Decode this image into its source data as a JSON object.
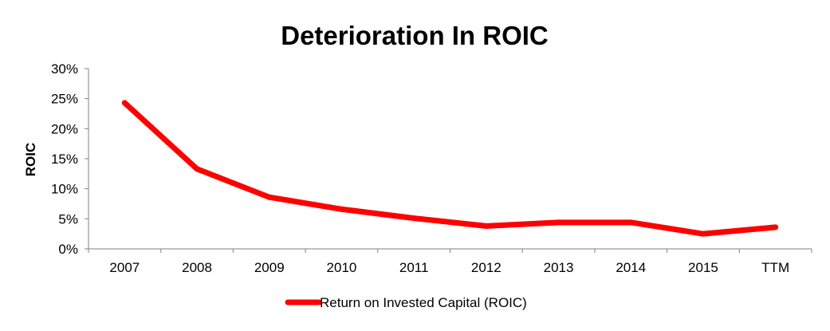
{
  "chart_data": {
    "type": "line",
    "title": "Deterioration In ROIC",
    "xlabel": "",
    "ylabel": "ROIC",
    "categories": [
      "2007",
      "2008",
      "2009",
      "2010",
      "2011",
      "2012",
      "2013",
      "2014",
      "2015",
      "TTM"
    ],
    "series": [
      {
        "name": "Return on Invested Capital (ROIC)",
        "values": [
          24.3,
          13.3,
          8.6,
          6.6,
          5.1,
          3.8,
          4.4,
          4.4,
          2.5,
          3.6
        ],
        "color": "#ff0000"
      }
    ],
    "ylim": [
      0,
      30
    ],
    "yticks": [
      0,
      5,
      10,
      15,
      20,
      25,
      30
    ],
    "ytick_labels": [
      "0%",
      "5%",
      "10%",
      "15%",
      "20%",
      "25%",
      "30%"
    ],
    "grid": false,
    "legend_position": "bottom"
  }
}
